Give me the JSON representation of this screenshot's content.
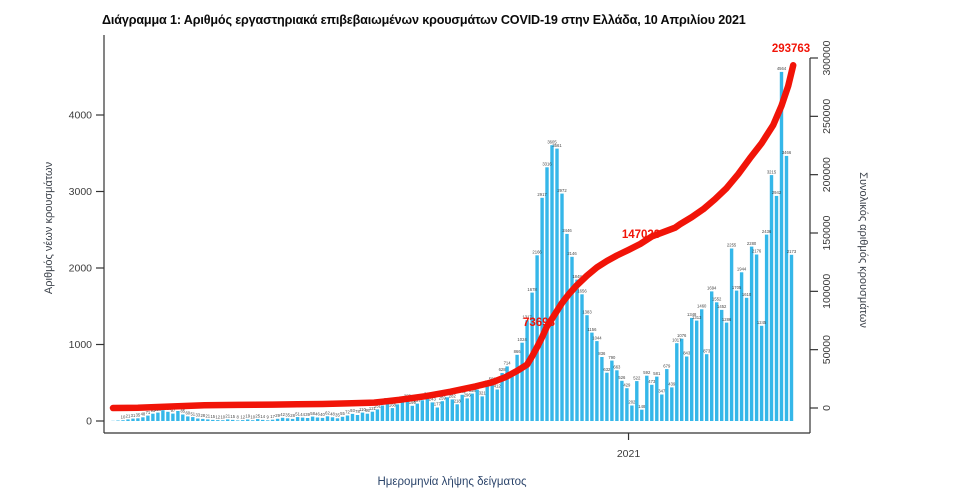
{
  "page": {
    "title": "Διάγραμμα 1: Αριθμός εργαστηριακά επιβεβαιωμένων κρουσμάτων COVID-19 στην Ελλάδα, 10 Απριλίου 2021"
  },
  "chart_data": {
    "type": "bar",
    "title": "Διάγραμμα 1: Αριθμός εργαστηριακά επιβεβαιωμένων κρουσμάτων COVID-19 στην Ελλάδα, 10 Απριλίου 2021",
    "xlabel": "Ημερομηνία λήψης δείγματος",
    "x_axis": {
      "start_date": "2020-02-26",
      "end_date": "2021-04-10",
      "range_days": [
        0,
        409
      ],
      "tick_labels": [
        {
          "label": "2021",
          "day_index": 310
        }
      ]
    },
    "left_axis": {
      "label": "Αριθμός νέων κρουσμάτων",
      "ticks": [
        0,
        1000,
        2000,
        3000,
        4000
      ],
      "lim": [
        0,
        5050
      ]
    },
    "right_axis": {
      "label": "Συνολικός αριθμός κρουσμάτων",
      "ticks": [
        0,
        50000,
        100000,
        150000,
        200000,
        250000,
        300000
      ],
      "lim": [
        0,
        310000
      ]
    },
    "grid": false,
    "legend": false,
    "colors": {
      "bars": "#35b7e9",
      "line": "#f11408",
      "annotation": "#f11408",
      "axis_text": "#3c3c3c",
      "xlabel_text": "#2c456b"
    },
    "series": [
      {
        "name": "daily-new-cases",
        "type": "bar",
        "color": "#35b7e9",
        "start_day": 0,
        "sample_step_days": 3,
        "values": [
          3,
          7,
          10,
          21,
          31,
          35,
          48,
          71,
          95,
          110,
          141,
          120,
          97,
          131,
          85,
          60,
          51,
          33,
          28,
          21,
          15,
          12,
          10,
          21,
          15,
          8,
          12,
          19,
          10,
          25,
          14,
          9,
          17,
          29,
          42,
          35,
          28,
          51,
          44,
          39,
          58,
          46,
          40,
          62,
          48,
          35,
          55,
          72,
          93,
          78,
          110,
          95,
          121,
          151,
          203,
          235,
          168,
          217,
          251,
          283,
          199,
          227,
          270,
          311,
          243,
          177,
          259,
          310,
          282,
          218,
          342,
          296,
          358,
          411,
          321,
          467,
          508,
          412,
          628,
          714,
          582,
          866,
          1024,
          1317,
          1678,
          2166,
          2917,
          3316,
          3605,
          3561,
          2972,
          2446,
          2146,
          1848,
          1656,
          1383,
          1156,
          1044,
          836,
          632,
          790,
          663,
          526,
          429,
          202,
          522,
          148,
          592,
          473,
          581,
          347,
          679,
          439,
          1017,
          1076,
          843,
          1348,
          1313,
          1460,
          873,
          1694,
          1552,
          1452,
          1286,
          2255,
          1705,
          1944,
          1610,
          2280,
          2176,
          1245,
          2436,
          3215,
          2942,
          4564,
          3466,
          2173
        ]
      },
      {
        "name": "cumulative-cases",
        "type": "line",
        "color": "#f11408",
        "points": [
          [
            0,
            0
          ],
          [
            15,
            150
          ],
          [
            35,
            1314
          ],
          [
            55,
            2400
          ],
          [
            75,
            2700
          ],
          [
            96,
            2950
          ],
          [
            111,
            3200
          ],
          [
            126,
            3460
          ],
          [
            141,
            3900
          ],
          [
            157,
            4600
          ],
          [
            172,
            6900
          ],
          [
            188,
            10150
          ],
          [
            203,
            14000
          ],
          [
            218,
            18500
          ],
          [
            228,
            22000
          ],
          [
            236,
            26500
          ],
          [
            243,
            31800
          ],
          [
            249,
            37200
          ],
          [
            252,
            44300
          ],
          [
            255,
            52200
          ],
          [
            258,
            60700
          ],
          [
            261,
            70000
          ],
          [
            264,
            76500
          ],
          [
            270,
            90000
          ],
          [
            274,
            97500
          ],
          [
            279,
            105300
          ],
          [
            285,
            113500
          ],
          [
            291,
            120500
          ],
          [
            297,
            126000
          ],
          [
            303,
            130700
          ],
          [
            310,
            135500
          ],
          [
            317,
            140600
          ],
          [
            324,
            147023
          ],
          [
            331,
            150800
          ],
          [
            338,
            154500
          ],
          [
            341,
            157500
          ],
          [
            348,
            163500
          ],
          [
            355,
            170500
          ],
          [
            362,
            179000
          ],
          [
            369,
            188500
          ],
          [
            376,
            200500
          ],
          [
            383,
            214000
          ],
          [
            390,
            227000
          ],
          [
            397,
            242500
          ],
          [
            402,
            259000
          ],
          [
            406,
            276000
          ],
          [
            409,
            293763
          ]
        ]
      }
    ],
    "annotations": [
      {
        "text": "73693",
        "px": [
          539,
          322
        ]
      },
      {
        "text": "147023",
        "px": [
          641,
          234
        ]
      },
      {
        "text": "293763",
        "px": [
          791,
          48
        ]
      }
    ]
  }
}
